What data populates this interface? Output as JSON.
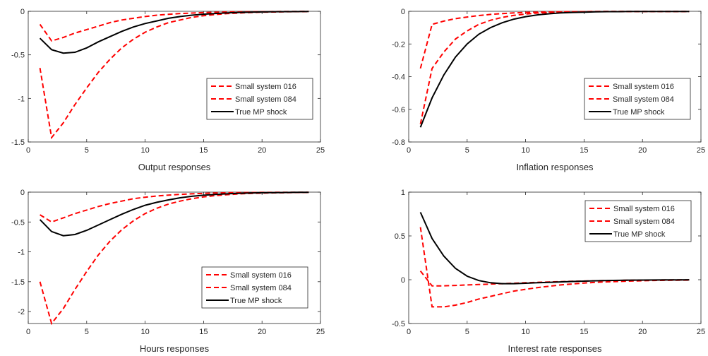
{
  "chart_data": [
    {
      "type": "line",
      "xlabel": "Output responses",
      "xlim": [
        0,
        25
      ],
      "ylim": [
        -1.5,
        0
      ],
      "xticks": [
        0,
        5,
        10,
        15,
        20,
        25
      ],
      "yticks": [
        -1.5,
        -1,
        -0.5,
        0
      ],
      "ytick_labels": [
        "-1.5",
        "-1",
        "-0.5",
        "0"
      ],
      "legend_position": "middle-right",
      "x": [
        1,
        2,
        3,
        4,
        5,
        6,
        7,
        8,
        9,
        10,
        11,
        12,
        13,
        14,
        15,
        16,
        17,
        18,
        19,
        20,
        21,
        22,
        23,
        24
      ],
      "series": [
        {
          "name": "Small system 016",
          "style": "dashed",
          "color": "#ff0000",
          "values": [
            -0.15,
            -0.34,
            -0.3,
            -0.25,
            -0.21,
            -0.17,
            -0.13,
            -0.1,
            -0.08,
            -0.06,
            -0.045,
            -0.035,
            -0.025,
            -0.02,
            -0.015,
            -0.011,
            -0.008,
            -0.006,
            -0.005,
            -0.004,
            -0.003,
            -0.002,
            -0.002,
            -0.001
          ]
        },
        {
          "name": "Small system 084",
          "style": "dashed",
          "color": "#ff0000",
          "values": [
            -0.65,
            -1.45,
            -1.28,
            -1.07,
            -0.88,
            -0.7,
            -0.55,
            -0.42,
            -0.32,
            -0.24,
            -0.18,
            -0.13,
            -0.1,
            -0.07,
            -0.05,
            -0.037,
            -0.027,
            -0.02,
            -0.014,
            -0.01,
            -0.008,
            -0.006,
            -0.004,
            -0.003
          ]
        },
        {
          "name": "True MP shock",
          "style": "solid",
          "color": "#000000",
          "values": [
            -0.31,
            -0.44,
            -0.48,
            -0.47,
            -0.42,
            -0.35,
            -0.29,
            -0.23,
            -0.18,
            -0.14,
            -0.11,
            -0.08,
            -0.06,
            -0.045,
            -0.033,
            -0.025,
            -0.018,
            -0.013,
            -0.01,
            -0.007,
            -0.005,
            -0.004,
            -0.003,
            -0.002
          ]
        }
      ]
    },
    {
      "type": "line",
      "xlabel": "Inflation responses",
      "xlim": [
        0,
        25
      ],
      "ylim": [
        -0.8,
        0
      ],
      "xticks": [
        0,
        5,
        10,
        15,
        20,
        25
      ],
      "yticks": [
        -0.8,
        -0.6,
        -0.4,
        -0.2,
        0
      ],
      "ytick_labels": [
        "-0.8",
        "-0.6",
        "-0.4",
        "-0.2",
        "0"
      ],
      "legend_position": "middle-right",
      "x": [
        1,
        2,
        3,
        4,
        5,
        6,
        7,
        8,
        9,
        10,
        11,
        12,
        13,
        14,
        15,
        16,
        17,
        18,
        19,
        20,
        21,
        22,
        23,
        24
      ],
      "series": [
        {
          "name": "Small system 016",
          "style": "dashed",
          "color": "#ff0000",
          "values": [
            -0.35,
            -0.08,
            -0.06,
            -0.045,
            -0.035,
            -0.026,
            -0.019,
            -0.014,
            -0.01,
            -0.007,
            -0.005,
            -0.004,
            -0.003,
            -0.002,
            -0.002,
            -0.001,
            -0.001,
            -0.001,
            -0.001,
            -0.001,
            -0.001,
            -0.001,
            -0.001,
            -0.001
          ]
        },
        {
          "name": "Small system 084",
          "style": "dashed",
          "color": "#ff0000",
          "values": [
            -0.69,
            -0.35,
            -0.25,
            -0.17,
            -0.12,
            -0.08,
            -0.055,
            -0.037,
            -0.025,
            -0.017,
            -0.011,
            -0.008,
            -0.005,
            -0.004,
            -0.003,
            -0.002,
            -0.001,
            -0.001,
            -0.001,
            -0.001,
            -0.001,
            -0.001,
            -0.001,
            -0.001
          ]
        },
        {
          "name": "True MP shock",
          "style": "solid",
          "color": "#000000",
          "values": [
            -0.71,
            -0.53,
            -0.39,
            -0.28,
            -0.2,
            -0.14,
            -0.1,
            -0.07,
            -0.048,
            -0.033,
            -0.022,
            -0.015,
            -0.01,
            -0.007,
            -0.005,
            -0.003,
            -0.002,
            -0.002,
            -0.001,
            -0.001,
            -0.001,
            -0.001,
            -0.001,
            -0.001
          ]
        }
      ]
    },
    {
      "type": "line",
      "xlabel": "Hours responses",
      "xlim": [
        0,
        25
      ],
      "ylim": [
        -2.2,
        0
      ],
      "xticks": [
        0,
        5,
        10,
        15,
        20,
        25
      ],
      "yticks": [
        -2,
        -1.5,
        -1,
        -0.5,
        0
      ],
      "ytick_labels": [
        "-2",
        "-1.5",
        "-1",
        "-0.5",
        "0"
      ],
      "legend_position": "bottom-right",
      "x": [
        1,
        2,
        3,
        4,
        5,
        6,
        7,
        8,
        9,
        10,
        11,
        12,
        13,
        14,
        15,
        16,
        17,
        18,
        19,
        20,
        21,
        22,
        23,
        24
      ],
      "series": [
        {
          "name": "Small system 016",
          "style": "dashed",
          "color": "#ff0000",
          "values": [
            -0.38,
            -0.5,
            -0.43,
            -0.36,
            -0.3,
            -0.24,
            -0.19,
            -0.15,
            -0.11,
            -0.085,
            -0.065,
            -0.05,
            -0.038,
            -0.028,
            -0.021,
            -0.015,
            -0.011,
            -0.008,
            -0.006,
            -0.005,
            -0.004,
            -0.003,
            -0.002,
            -0.002
          ]
        },
        {
          "name": "Small system 084",
          "style": "dashed",
          "color": "#ff0000",
          "values": [
            -1.5,
            -2.2,
            -1.95,
            -1.63,
            -1.33,
            -1.05,
            -0.82,
            -0.63,
            -0.48,
            -0.36,
            -0.27,
            -0.2,
            -0.15,
            -0.11,
            -0.08,
            -0.058,
            -0.042,
            -0.03,
            -0.022,
            -0.016,
            -0.012,
            -0.009,
            -0.006,
            -0.005
          ]
        },
        {
          "name": "True MP shock",
          "style": "solid",
          "color": "#000000",
          "values": [
            -0.46,
            -0.66,
            -0.73,
            -0.71,
            -0.64,
            -0.55,
            -0.46,
            -0.37,
            -0.29,
            -0.22,
            -0.17,
            -0.13,
            -0.095,
            -0.07,
            -0.052,
            -0.038,
            -0.028,
            -0.02,
            -0.015,
            -0.011,
            -0.008,
            -0.006,
            -0.004,
            -0.003
          ]
        }
      ]
    },
    {
      "type": "line",
      "xlabel": "Interest rate responses",
      "xlim": [
        0,
        25
      ],
      "ylim": [
        -0.5,
        1
      ],
      "xticks": [
        0,
        5,
        10,
        15,
        20,
        25
      ],
      "yticks": [
        -0.5,
        0,
        0.5,
        1
      ],
      "ytick_labels": [
        "-0.5",
        "0",
        "0.5",
        "1"
      ],
      "legend_position": "top-right",
      "x": [
        1,
        2,
        3,
        4,
        5,
        6,
        7,
        8,
        9,
        10,
        11,
        12,
        13,
        14,
        15,
        16,
        17,
        18,
        19,
        20,
        21,
        22,
        23,
        24
      ],
      "series": [
        {
          "name": "Small system 016",
          "style": "dashed",
          "color": "#ff0000",
          "values": [
            0.1,
            -0.07,
            -0.07,
            -0.065,
            -0.06,
            -0.055,
            -0.05,
            -0.045,
            -0.04,
            -0.035,
            -0.03,
            -0.026,
            -0.022,
            -0.018,
            -0.015,
            -0.012,
            -0.01,
            -0.008,
            -0.006,
            -0.005,
            -0.004,
            -0.003,
            -0.002,
            -0.002
          ]
        },
        {
          "name": "Small system 084",
          "style": "dashed",
          "color": "#ff0000",
          "values": [
            0.6,
            -0.31,
            -0.31,
            -0.29,
            -0.26,
            -0.22,
            -0.19,
            -0.16,
            -0.13,
            -0.11,
            -0.09,
            -0.075,
            -0.06,
            -0.048,
            -0.038,
            -0.03,
            -0.024,
            -0.019,
            -0.015,
            -0.012,
            -0.009,
            -0.007,
            -0.006,
            -0.005
          ]
        },
        {
          "name": "True MP shock",
          "style": "solid",
          "color": "#000000",
          "values": [
            0.77,
            0.47,
            0.27,
            0.13,
            0.04,
            -0.01,
            -0.035,
            -0.045,
            -0.045,
            -0.04,
            -0.035,
            -0.03,
            -0.025,
            -0.02,
            -0.016,
            -0.012,
            -0.009,
            -0.007,
            -0.005,
            -0.004,
            -0.003,
            -0.002,
            -0.002,
            -0.001
          ]
        }
      ]
    }
  ]
}
